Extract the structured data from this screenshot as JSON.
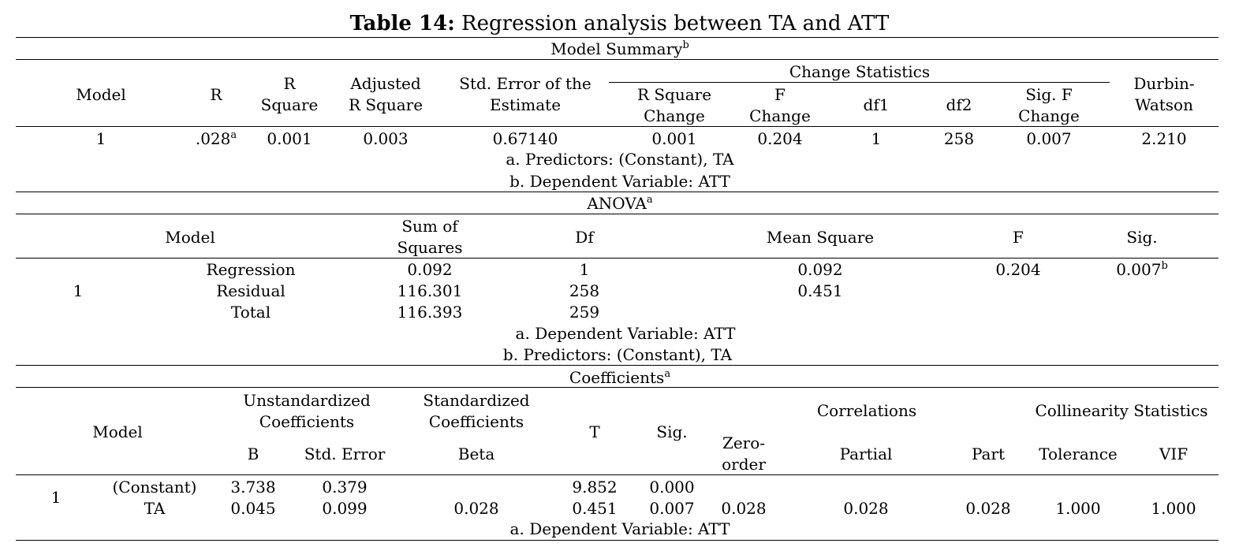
{
  "title": {
    "bold": "Table 14:",
    "rest": " Regression analysis between TA and ATT"
  },
  "model_summary": {
    "caption": "Model Summary",
    "caption_sup": "b",
    "change_stats_label": "Change Statistics",
    "headers": {
      "model": "Model",
      "r": "R",
      "r_square": [
        "R",
        "Square"
      ],
      "adj_r_square": [
        "Adjusted",
        "R Square"
      ],
      "std_err": [
        "Std. Error of the",
        "Estimate"
      ],
      "r_sq_change": [
        "R Square",
        "Change"
      ],
      "f_change": [
        "F",
        "Change"
      ],
      "df1": "df1",
      "df2": "df2",
      "sig_f_change": [
        "Sig. F",
        "Change"
      ],
      "durbin_watson": [
        "Durbin-",
        "Watson"
      ]
    },
    "row": {
      "model": "1",
      "r": ".028",
      "r_sup": "a",
      "r_square": "0.001",
      "adj_r_square": "0.003",
      "std_err": "0.67140",
      "r_sq_change": "0.001",
      "f_change": "0.204",
      "df1": "1",
      "df2": "258",
      "sig_f_change": "0.007",
      "durbin_watson": "2.210"
    },
    "notes": [
      "a. Predictors: (Constant), TA",
      "b. Dependent Variable: ATT"
    ]
  },
  "anova": {
    "caption": "ANOVA",
    "caption_sup": "a",
    "headers": {
      "model": "Model",
      "sum_sq": [
        "Sum of",
        "Squares"
      ],
      "df": "Df",
      "mean_sq": "Mean Square",
      "f": "F",
      "sig": "Sig."
    },
    "model_num": "1",
    "rows": [
      {
        "label": "Regression",
        "sum_sq": "0.092",
        "df": "1",
        "mean_sq": "0.092",
        "f": "0.204",
        "sig": "0.007",
        "sig_sup": "b"
      },
      {
        "label": "Residual",
        "sum_sq": "116.301",
        "df": "258",
        "mean_sq": "0.451"
      },
      {
        "label": "Total",
        "sum_sq": "116.393",
        "df": "259"
      }
    ],
    "notes": [
      "a. Dependent Variable: ATT",
      "b. Predictors: (Constant), TA"
    ]
  },
  "coefficients": {
    "caption": "Coefficients",
    "caption_sup": "a",
    "headers": {
      "model": "Model",
      "unstd": [
        "Unstandardized",
        "Coefficients"
      ],
      "std": [
        "Standardized",
        "Coefficients"
      ],
      "t": "T",
      "sig": "Sig.",
      "correlations": "Correlations",
      "collinearity": "Collinearity Statistics",
      "b": "B",
      "std_error": "Std. Error",
      "beta": "Beta",
      "zero_order": [
        "Zero-",
        "order"
      ],
      "partial": "Partial",
      "part": "Part",
      "tolerance": "Tolerance",
      "vif": "VIF"
    },
    "model_num": "1",
    "rows": [
      {
        "label": "(Constant)",
        "b": "3.738",
        "std_error": "0.379",
        "t": "9.852",
        "sig": "0.000"
      },
      {
        "label": "TA",
        "b": "0.045",
        "std_error": "0.099",
        "beta": "0.028",
        "t": "0.451",
        "sig": "0.007",
        "zero_order": "0.028",
        "partial": "0.028",
        "part": "0.028",
        "tolerance": "1.000",
        "vif": "1.000"
      }
    ],
    "notes": [
      "a. Dependent Variable: ATT"
    ]
  }
}
